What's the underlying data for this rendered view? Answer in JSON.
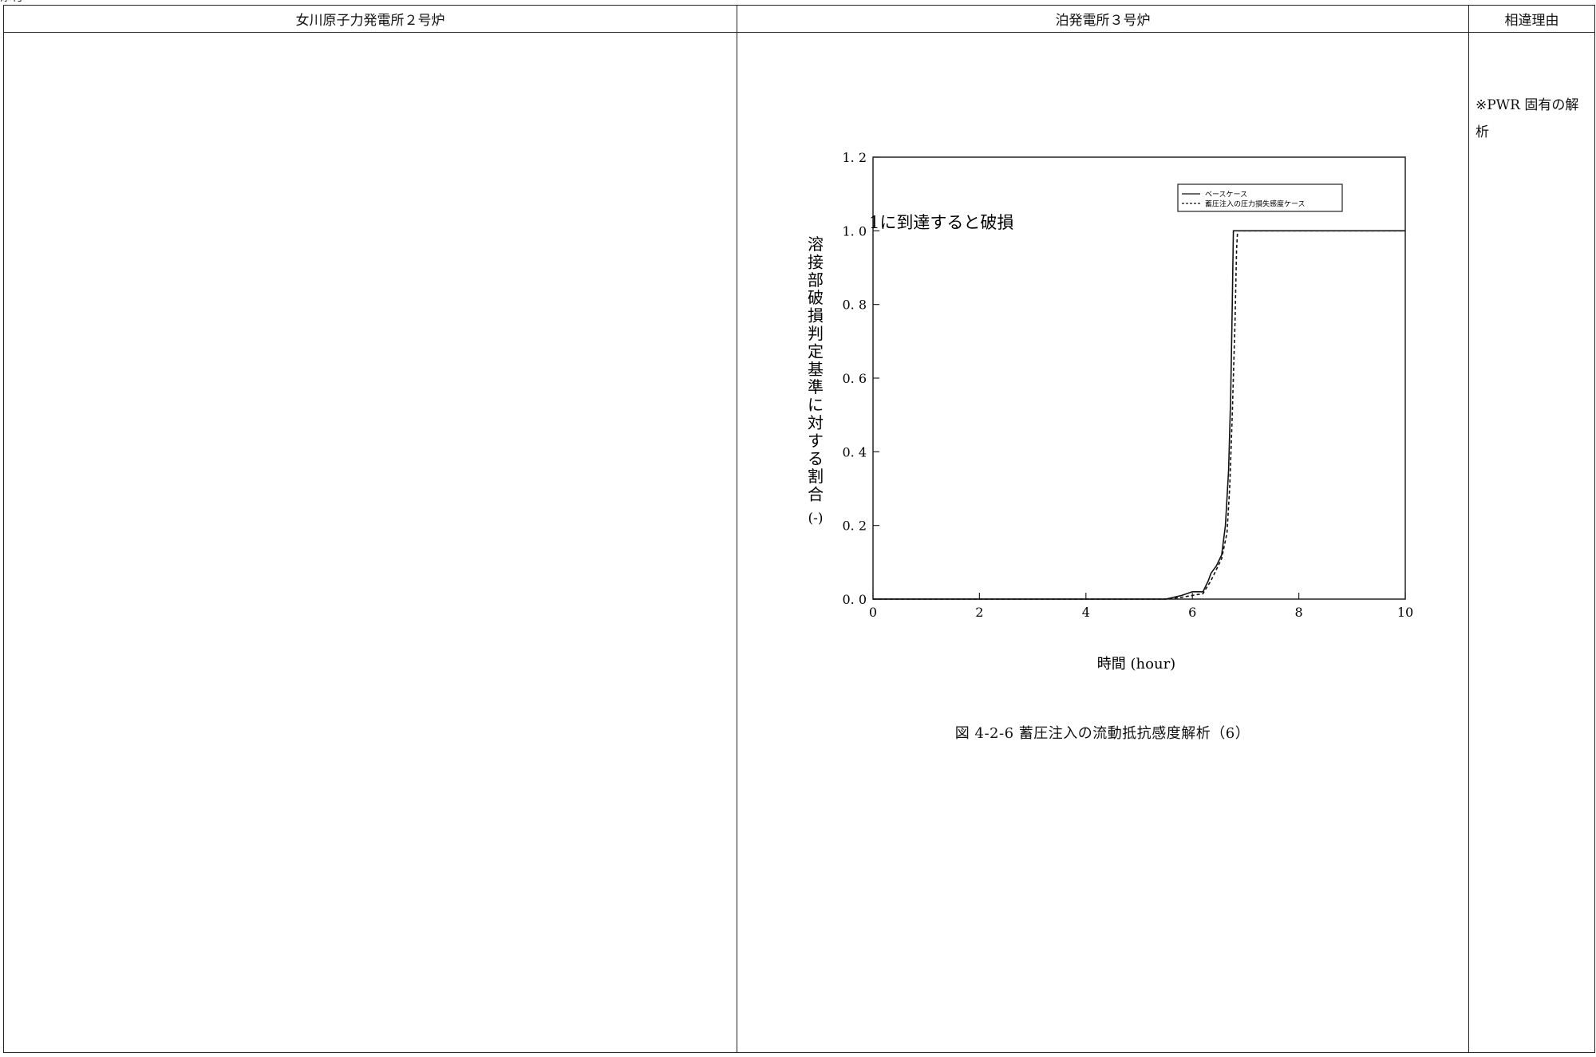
{
  "header": {
    "col_left": "女川原子力発電所２号炉",
    "col_mid": "泊発電所３号炉",
    "col_right": "相違理由"
  },
  "reason": {
    "text": "※PWR 固有の解析"
  },
  "figure": {
    "caption": "図 4-2-6 蓄圧注入の流動抵抗感度解析（6）"
  },
  "chart_data": {
    "type": "line",
    "title": "",
    "xlabel": "時間 (hour)",
    "ylabel": "溶接部破損判定基準に対する割合",
    "ylabel_unit": "(-)",
    "xlim": [
      0,
      10
    ],
    "ylim": [
      0,
      1.2
    ],
    "x_ticks": [
      "0",
      "2",
      "4",
      "6",
      "8",
      "10"
    ],
    "y_ticks": [
      "0.0",
      "0.2",
      "0.4",
      "0.6",
      "0.8",
      "1.0",
      "1.2"
    ],
    "annotation": "1に到達すると破損",
    "legend_position": "top-right",
    "grid": false,
    "series": [
      {
        "name": "ベースケース",
        "style": "solid",
        "x": [
          0,
          5.5,
          5.8,
          6.0,
          6.2,
          6.3,
          6.35,
          6.45,
          6.55,
          6.62,
          6.68,
          6.72,
          6.75,
          6.77,
          6.8,
          7.0,
          8.0,
          10.0
        ],
        "y": [
          0,
          0.0,
          0.01,
          0.02,
          0.02,
          0.05,
          0.07,
          0.09,
          0.12,
          0.2,
          0.35,
          0.55,
          0.8,
          1.0,
          1.0,
          1.0,
          1.0,
          1.0
        ]
      },
      {
        "name": "蓄圧注入の圧力損失感度ケース",
        "style": "dashed",
        "x": [
          0,
          5.5,
          5.8,
          6.0,
          6.2,
          6.35,
          6.45,
          6.55,
          6.65,
          6.7,
          6.75,
          6.8,
          6.83,
          6.85,
          7.0,
          8.0,
          10.0
        ],
        "y": [
          0,
          0.0,
          0.005,
          0.01,
          0.015,
          0.05,
          0.08,
          0.11,
          0.18,
          0.3,
          0.5,
          0.75,
          0.95,
          1.0,
          1.0,
          1.0,
          1.0
        ]
      }
    ]
  }
}
